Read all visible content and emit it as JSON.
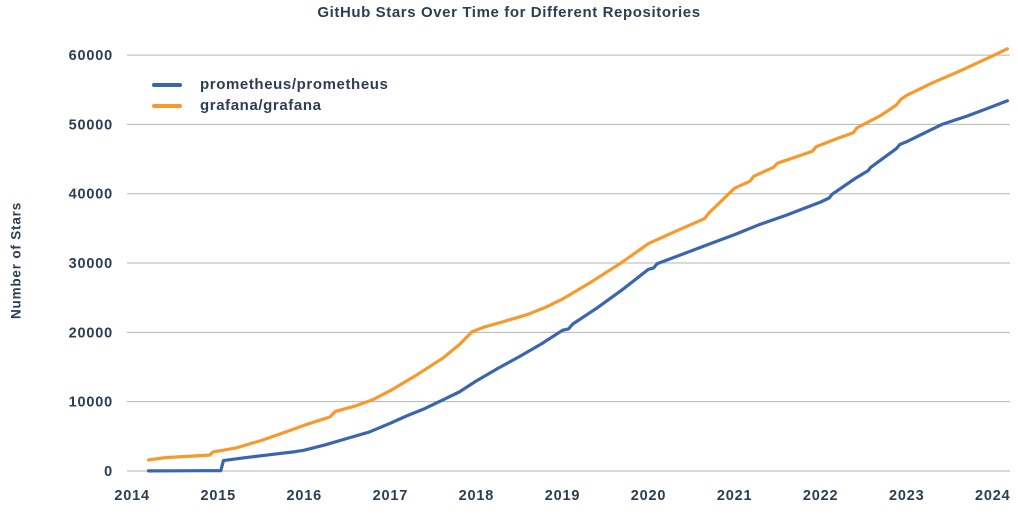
{
  "chart": {
    "title": "GitHub Stars Over Time for Different Repositories",
    "y_axis_title": "Number of Stars",
    "text_color": "#2e3d54",
    "grid_color": "#b5b5b5",
    "background_color": "#ffffff"
  },
  "legend": {
    "entries": [
      {
        "label": "prometheus/prometheus",
        "color": "#3a66ad"
      },
      {
        "label": "grafana/grafana",
        "color": "#f8992e"
      }
    ]
  },
  "chart_data": {
    "type": "line",
    "title": "GitHub Stars Over Time for Different Repositories",
    "xlabel": "",
    "ylabel": "Number of Stars",
    "x_ticks": [
      2014,
      2015,
      2016,
      2017,
      2018,
      2019,
      2020,
      2021,
      2022,
      2023,
      2024
    ],
    "y_ticks": [
      0,
      10000,
      20000,
      30000,
      40000,
      50000,
      60000
    ],
    "xlim": [
      2013.94,
      2024.2
    ],
    "ylim": [
      0,
      62000
    ],
    "grid": "horizontal-only",
    "legend_position": "upper-left",
    "series": [
      {
        "name": "prometheus/prometheus",
        "color": "#3a66ad",
        "points": [
          [
            2014.19,
            20
          ],
          [
            2014.5,
            30
          ],
          [
            2014.8,
            40
          ],
          [
            2015.03,
            60
          ],
          [
            2015.06,
            1500
          ],
          [
            2015.3,
            1900
          ],
          [
            2015.6,
            2350
          ],
          [
            2015.9,
            2800
          ],
          [
            2016.0,
            3000
          ],
          [
            2016.25,
            3800
          ],
          [
            2016.5,
            4700
          ],
          [
            2016.75,
            5600
          ],
          [
            2017.0,
            6900
          ],
          [
            2017.2,
            8000
          ],
          [
            2017.4,
            9000
          ],
          [
            2017.6,
            10200
          ],
          [
            2017.8,
            11400
          ],
          [
            2018.0,
            13000
          ],
          [
            2018.25,
            14800
          ],
          [
            2018.5,
            16500
          ],
          [
            2018.75,
            18300
          ],
          [
            2019.0,
            20300
          ],
          [
            2019.07,
            20500
          ],
          [
            2019.12,
            21200
          ],
          [
            2019.4,
            23500
          ],
          [
            2019.7,
            26200
          ],
          [
            2020.0,
            29100
          ],
          [
            2020.06,
            29300
          ],
          [
            2020.1,
            29900
          ],
          [
            2020.4,
            31300
          ],
          [
            2020.7,
            32700
          ],
          [
            2021.0,
            34100
          ],
          [
            2021.3,
            35600
          ],
          [
            2021.6,
            36900
          ],
          [
            2022.0,
            38800
          ],
          [
            2022.1,
            39400
          ],
          [
            2022.13,
            39900
          ],
          [
            2022.4,
            42200
          ],
          [
            2022.55,
            43300
          ],
          [
            2022.58,
            43800
          ],
          [
            2022.88,
            46500
          ],
          [
            2022.92,
            47100
          ],
          [
            2023.0,
            47500
          ],
          [
            2023.41,
            50000
          ],
          [
            2023.7,
            51200
          ],
          [
            2024.0,
            52600
          ],
          [
            2024.17,
            53400
          ]
        ]
      },
      {
        "name": "grafana/grafana",
        "color": "#f8992e",
        "points": [
          [
            2014.19,
            1600
          ],
          [
            2014.4,
            1950
          ],
          [
            2014.7,
            2150
          ],
          [
            2014.9,
            2300
          ],
          [
            2014.94,
            2750
          ],
          [
            2015.2,
            3300
          ],
          [
            2015.5,
            4400
          ],
          [
            2015.8,
            5700
          ],
          [
            2016.0,
            6600
          ],
          [
            2016.3,
            7800
          ],
          [
            2016.36,
            8600
          ],
          [
            2016.6,
            9400
          ],
          [
            2016.8,
            10300
          ],
          [
            2017.0,
            11600
          ],
          [
            2017.3,
            13800
          ],
          [
            2017.6,
            16200
          ],
          [
            2017.8,
            18200
          ],
          [
            2017.95,
            20100
          ],
          [
            2018.1,
            20800
          ],
          [
            2018.3,
            21500
          ],
          [
            2018.6,
            22600
          ],
          [
            2018.8,
            23600
          ],
          [
            2019.0,
            24800
          ],
          [
            2019.3,
            27000
          ],
          [
            2019.68,
            30000
          ],
          [
            2020.0,
            32800
          ],
          [
            2020.3,
            34500
          ],
          [
            2020.65,
            36400
          ],
          [
            2020.7,
            37200
          ],
          [
            2021.0,
            40800
          ],
          [
            2021.18,
            41800
          ],
          [
            2021.22,
            42500
          ],
          [
            2021.45,
            43800
          ],
          [
            2021.5,
            44400
          ],
          [
            2021.9,
            46100
          ],
          [
            2021.95,
            46800
          ],
          [
            2022.2,
            48000
          ],
          [
            2022.38,
            48800
          ],
          [
            2022.42,
            49500
          ],
          [
            2022.7,
            51300
          ],
          [
            2022.88,
            52800
          ],
          [
            2022.93,
            53600
          ],
          [
            2023.0,
            54200
          ],
          [
            2023.3,
            56000
          ],
          [
            2023.6,
            57600
          ],
          [
            2024.0,
            59900
          ],
          [
            2024.17,
            60900
          ]
        ]
      }
    ]
  }
}
